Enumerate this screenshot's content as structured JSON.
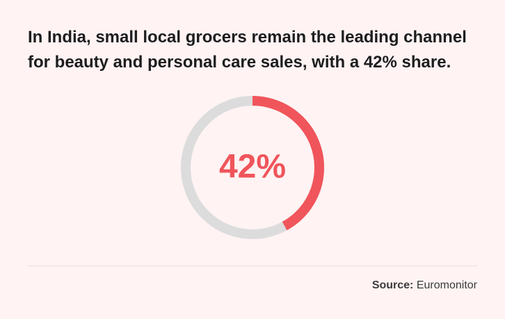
{
  "headline": {
    "line1": "In India, small local grocers remain the leading channel",
    "line2": "for beauty and personal care sales, with a 42% share."
  },
  "chart_data": {
    "type": "pie",
    "values": [
      42,
      58
    ],
    "center_label": "42%",
    "colors": {
      "highlight": "#f0555b",
      "remainder": "#dcdcdc",
      "label": "#f0555b"
    }
  },
  "source": {
    "label": "Source:",
    "value": "Euromonitor"
  }
}
